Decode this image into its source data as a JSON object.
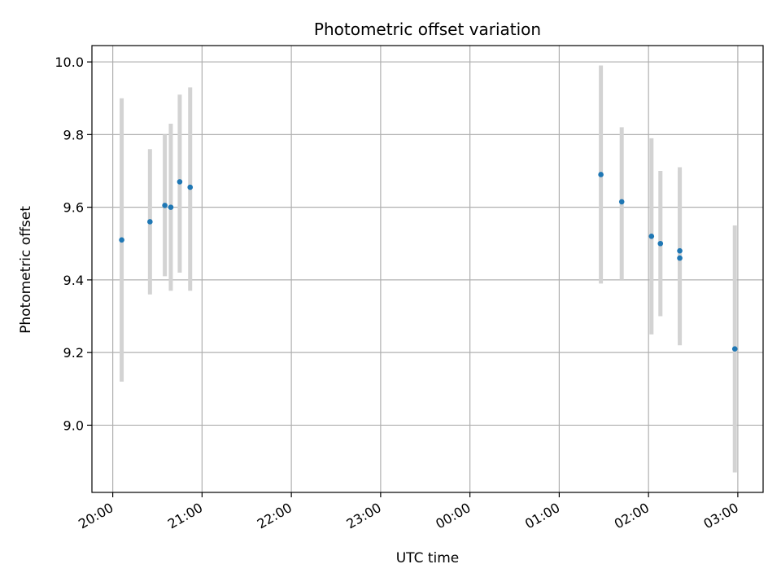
{
  "chart_data": {
    "type": "scatter",
    "title": "Photometric offset variation",
    "xlabel": "UTC time",
    "ylabel": "Photometric offset",
    "x_ticks": [
      "20:00",
      "21:00",
      "22:00",
      "23:00",
      "00:00",
      "01:00",
      "02:00",
      "03:00"
    ],
    "y_ticks": [
      "9.0",
      "9.2",
      "9.4",
      "9.6",
      "9.8",
      "10.0"
    ],
    "xlim": [
      "19:46",
      "03:17"
    ],
    "ylim": [
      8.815,
      10.045
    ],
    "grid": true,
    "colors": {
      "points": "#1f77b4",
      "error_bars": "#d3d3d3",
      "grid": "#b0b0b0"
    },
    "points": [
      {
        "time": "20:06",
        "y": 9.51,
        "ylow": 9.12,
        "yhigh": 9.9
      },
      {
        "time": "20:25",
        "y": 9.56,
        "ylow": 9.36,
        "yhigh": 9.76
      },
      {
        "time": "20:35",
        "y": 9.605,
        "ylow": 9.41,
        "yhigh": 9.8
      },
      {
        "time": "20:39",
        "y": 9.6,
        "ylow": 9.37,
        "yhigh": 9.83
      },
      {
        "time": "20:45",
        "y": 9.67,
        "ylow": 9.42,
        "yhigh": 9.91
      },
      {
        "time": "20:52",
        "y": 9.655,
        "ylow": 9.37,
        "yhigh": 9.93
      },
      {
        "time": "01:28",
        "y": 9.69,
        "ylow": 9.39,
        "yhigh": 9.99
      },
      {
        "time": "01:42",
        "y": 9.615,
        "ylow": 9.4,
        "yhigh": 9.82
      },
      {
        "time": "02:02",
        "y": 9.52,
        "ylow": 9.25,
        "yhigh": 9.79
      },
      {
        "time": "02:08",
        "y": 9.5,
        "ylow": 9.3,
        "yhigh": 9.7
      },
      {
        "time": "02:21",
        "y": 9.48,
        "ylow": 9.24,
        "yhigh": 9.71
      },
      {
        "time": "02:21",
        "y": 9.46,
        "ylow": 9.22,
        "yhigh": 9.7
      },
      {
        "time": "02:58",
        "y": 9.21,
        "ylow": 8.87,
        "yhigh": 9.55
      }
    ]
  }
}
